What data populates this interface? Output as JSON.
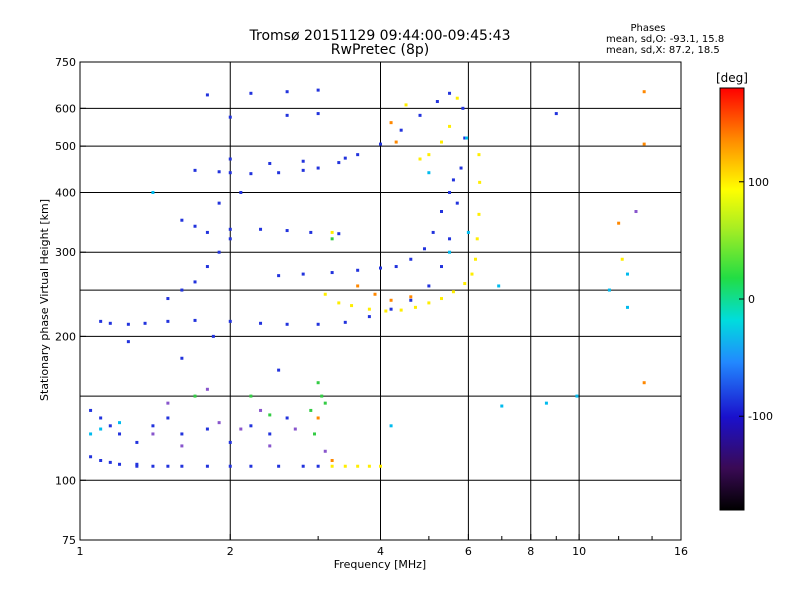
{
  "chart_data": {
    "type": "scatter",
    "title": "Tromsø 20151129 09:44:00-09:45:43",
    "subtitle": "RwPretec (8p)",
    "stats": {
      "header": "Phases",
      "line1": "mean, sd,O:  -93.1, 15.8",
      "line2": "mean, sd,X:  87.2, 18.5"
    },
    "xlabel": "Frequency [MHz]",
    "ylabel": "Stationary phase Virtual Height [km]",
    "xscale": "log",
    "yscale": "log",
    "xlim": [
      1,
      16
    ],
    "ylim": [
      75,
      750
    ],
    "xticks": [
      1,
      2,
      4,
      6,
      8,
      10,
      16
    ],
    "yticks": [
      75,
      100,
      200,
      300,
      400,
      500,
      600,
      750
    ],
    "x_grid_lines": [
      2,
      4,
      6,
      8,
      10
    ],
    "y_grid_lines": [
      100,
      150,
      200,
      250,
      300,
      400,
      500,
      600
    ],
    "grid": true,
    "colorbar": {
      "label": "[deg]",
      "min": -180,
      "max": 180,
      "ticks": [
        -100,
        0,
        100
      ],
      "colormap": "rainbow (black-purple-blue-cyan-green-yellow-orange-red)"
    },
    "series": [
      {
        "color": "#2233dd",
        "points": [
          [
            1.05,
            112
          ],
          [
            1.1,
            110
          ],
          [
            1.15,
            109
          ],
          [
            1.2,
            108
          ],
          [
            1.3,
            107
          ],
          [
            1.4,
            107
          ],
          [
            1.5,
            107
          ],
          [
            1.6,
            107
          ],
          [
            1.8,
            107
          ],
          [
            2.0,
            107
          ],
          [
            2.2,
            107
          ],
          [
            2.5,
            107
          ],
          [
            2.8,
            107
          ],
          [
            3.0,
            107
          ],
          [
            1.05,
            140
          ],
          [
            1.1,
            135
          ],
          [
            1.15,
            130
          ],
          [
            1.2,
            125
          ],
          [
            1.3,
            120
          ],
          [
            1.4,
            130
          ],
          [
            1.5,
            135
          ],
          [
            1.6,
            125
          ],
          [
            1.8,
            128
          ],
          [
            2.0,
            120
          ],
          [
            2.2,
            130
          ],
          [
            2.4,
            125
          ],
          [
            2.6,
            135
          ],
          [
            1.1,
            215
          ],
          [
            1.15,
            213
          ],
          [
            1.25,
            212
          ],
          [
            1.35,
            213
          ],
          [
            1.5,
            215
          ],
          [
            1.7,
            216
          ],
          [
            2.0,
            215
          ],
          [
            2.3,
            213
          ],
          [
            2.6,
            212
          ],
          [
            3.0,
            212
          ],
          [
            3.4,
            214
          ],
          [
            3.8,
            220
          ],
          [
            4.2,
            228
          ],
          [
            4.6,
            238
          ],
          [
            5.0,
            255
          ],
          [
            5.3,
            280
          ],
          [
            5.5,
            320
          ],
          [
            5.7,
            380
          ],
          [
            5.8,
            450
          ],
          [
            5.9,
            520
          ],
          [
            5.85,
            600
          ],
          [
            1.5,
            240
          ],
          [
            1.6,
            250
          ],
          [
            1.7,
            260
          ],
          [
            1.8,
            280
          ],
          [
            1.9,
            300
          ],
          [
            2.0,
            320
          ],
          [
            1.6,
            350
          ],
          [
            1.7,
            340
          ],
          [
            1.8,
            330
          ],
          [
            2.0,
            335
          ],
          [
            2.3,
            335
          ],
          [
            2.6,
            333
          ],
          [
            2.9,
            330
          ],
          [
            3.3,
            328
          ],
          [
            1.7,
            445
          ],
          [
            1.9,
            442
          ],
          [
            2.0,
            440
          ],
          [
            2.2,
            438
          ],
          [
            2.5,
            440
          ],
          [
            2.8,
            445
          ],
          [
            3.0,
            450
          ],
          [
            3.3,
            462
          ],
          [
            3.6,
            480
          ],
          [
            4.0,
            505
          ],
          [
            4.4,
            540
          ],
          [
            4.8,
            580
          ],
          [
            5.2,
            620
          ],
          [
            5.5,
            645
          ],
          [
            1.8,
            640
          ],
          [
            2.2,
            645
          ],
          [
            2.6,
            650
          ],
          [
            3.0,
            655
          ],
          [
            2.0,
            470
          ],
          [
            2.4,
            460
          ],
          [
            2.8,
            465
          ],
          [
            3.4,
            472
          ],
          [
            1.9,
            380
          ],
          [
            2.1,
            400
          ],
          [
            2.5,
            268
          ],
          [
            2.8,
            270
          ],
          [
            3.2,
            272
          ],
          [
            3.6,
            275
          ],
          [
            4.0,
            278
          ],
          [
            4.3,
            280
          ],
          [
            4.6,
            290
          ],
          [
            4.9,
            305
          ],
          [
            5.1,
            330
          ],
          [
            5.3,
            365
          ],
          [
            5.5,
            400
          ],
          [
            5.6,
            425
          ],
          [
            1.3,
            108
          ],
          [
            1.6,
            180
          ],
          [
            2.5,
            170
          ],
          [
            1.85,
            200
          ],
          [
            1.25,
            195
          ],
          [
            2.0,
            575
          ],
          [
            9.0,
            585
          ],
          [
            2.6,
            580
          ],
          [
            3.0,
            585
          ]
        ]
      },
      {
        "color": "#ffee00",
        "points": [
          [
            3.1,
            245
          ],
          [
            3.3,
            235
          ],
          [
            3.5,
            232
          ],
          [
            3.8,
            228
          ],
          [
            4.1,
            226
          ],
          [
            4.4,
            227
          ],
          [
            4.7,
            230
          ],
          [
            5.0,
            235
          ],
          [
            5.3,
            240
          ],
          [
            5.6,
            248
          ],
          [
            5.9,
            258
          ],
          [
            6.1,
            270
          ],
          [
            6.2,
            290
          ],
          [
            6.25,
            320
          ],
          [
            6.3,
            360
          ],
          [
            6.32,
            420
          ],
          [
            6.3,
            480
          ],
          [
            3.2,
            107
          ],
          [
            3.4,
            107
          ],
          [
            3.6,
            107
          ],
          [
            3.8,
            107
          ],
          [
            4.0,
            107
          ],
          [
            4.8,
            470
          ],
          [
            5.0,
            480
          ],
          [
            5.3,
            510
          ],
          [
            5.5,
            550
          ],
          [
            5.7,
            630
          ],
          [
            4.5,
            610
          ],
          [
            12.2,
            290
          ],
          [
            3.2,
            330
          ]
        ]
      },
      {
        "color": "#ff8800",
        "points": [
          [
            3.6,
            255
          ],
          [
            3.9,
            245
          ],
          [
            4.2,
            238
          ],
          [
            4.6,
            242
          ],
          [
            3.2,
            110
          ],
          [
            4.2,
            560
          ],
          [
            4.3,
            510
          ],
          [
            3.0,
            135
          ],
          [
            13.5,
            505
          ],
          [
            13.5,
            160
          ],
          [
            12.0,
            345
          ],
          [
            13.5,
            650
          ]
        ]
      },
      {
        "color": "#33cc44",
        "points": [
          [
            3.0,
            160
          ],
          [
            3.05,
            150
          ],
          [
            3.1,
            145
          ],
          [
            2.9,
            140
          ],
          [
            2.95,
            125
          ],
          [
            3.2,
            320
          ],
          [
            2.4,
            137
          ],
          [
            2.2,
            150
          ],
          [
            1.7,
            150
          ]
        ]
      },
      {
        "color": "#8855cc",
        "points": [
          [
            1.4,
            125
          ],
          [
            1.6,
            118
          ],
          [
            1.9,
            132
          ],
          [
            2.1,
            128
          ],
          [
            2.4,
            118
          ],
          [
            2.7,
            128
          ],
          [
            3.1,
            115
          ],
          [
            1.5,
            145
          ],
          [
            1.8,
            155
          ],
          [
            2.3,
            140
          ],
          [
            13.0,
            365
          ]
        ]
      },
      {
        "color": "#00bbee",
        "points": [
          [
            1.05,
            125
          ],
          [
            1.1,
            128
          ],
          [
            1.2,
            132
          ],
          [
            7.0,
            143
          ],
          [
            8.6,
            145
          ],
          [
            11.5,
            250
          ],
          [
            12.5,
            270
          ],
          [
            1.4,
            400
          ],
          [
            5.0,
            440
          ],
          [
            5.5,
            300
          ],
          [
            6.0,
            330
          ],
          [
            4.2,
            130
          ],
          [
            6.9,
            255
          ],
          [
            9.9,
            150
          ],
          [
            12.5,
            230
          ],
          [
            5.95,
            520
          ]
        ]
      }
    ]
  }
}
